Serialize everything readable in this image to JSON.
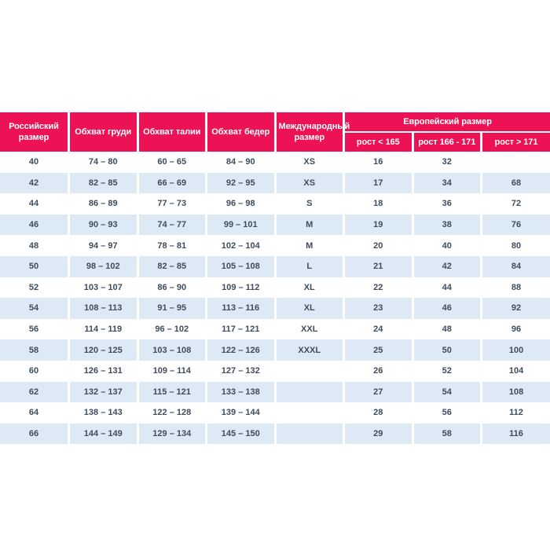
{
  "colors": {
    "header_bg": "#ED1155",
    "header_text": "#FFFFFF",
    "stripe_bg": "#DDE9F5",
    "text": "#3F4C5C"
  },
  "table": {
    "columns": [
      {
        "label": "Российский размер"
      },
      {
        "label": "Обхват груди"
      },
      {
        "label": "Обхват талии"
      },
      {
        "label": "Обхват бедер"
      },
      {
        "label": "Международный размер"
      }
    ],
    "group": {
      "label": "Европейский размер",
      "subcolumns": [
        "рост < 165",
        "рост 166 - 171",
        "рост > 171"
      ]
    },
    "rows": [
      [
        "40",
        "74 – 80",
        "60 – 65",
        "84 – 90",
        "XS",
        "16",
        "32",
        ""
      ],
      [
        "42",
        "82 – 85",
        "66 – 69",
        "92 – 95",
        "XS",
        "17",
        "34",
        "68"
      ],
      [
        "44",
        "86 – 89",
        "77 – 73",
        "96 – 98",
        "S",
        "18",
        "36",
        "72"
      ],
      [
        "46",
        "90 – 93",
        "74 – 77",
        "99 – 101",
        "M",
        "19",
        "38",
        "76"
      ],
      [
        "48",
        "94 – 97",
        "78 – 81",
        "102 – 104",
        "M",
        "20",
        "40",
        "80"
      ],
      [
        "50",
        "98 – 102",
        "82 – 85",
        "105 – 108",
        "L",
        "21",
        "42",
        "84"
      ],
      [
        "52",
        "103 – 107",
        "86 – 90",
        "109 – 112",
        "XL",
        "22",
        "44",
        "88"
      ],
      [
        "54",
        "108 – 113",
        "91 – 95",
        "113 – 116",
        "XL",
        "23",
        "46",
        "92"
      ],
      [
        "56",
        "114 – 119",
        "96 – 102",
        "117 – 121",
        "XXL",
        "24",
        "48",
        "96"
      ],
      [
        "58",
        "120 – 125",
        "103 – 108",
        "122 – 126",
        "XXXL",
        "25",
        "50",
        "100"
      ],
      [
        "60",
        "126 – 131",
        "109 – 114",
        "127 – 132",
        "",
        "26",
        "52",
        "104"
      ],
      [
        "62",
        "132 – 137",
        "115 – 121",
        "133 – 138",
        "",
        "27",
        "54",
        "108"
      ],
      [
        "64",
        "138 – 143",
        "122 – 128",
        "139 – 144",
        "",
        "28",
        "56",
        "112"
      ],
      [
        "66",
        "144 – 149",
        "129 – 134",
        "145 – 150",
        "",
        "29",
        "58",
        "116"
      ]
    ]
  }
}
